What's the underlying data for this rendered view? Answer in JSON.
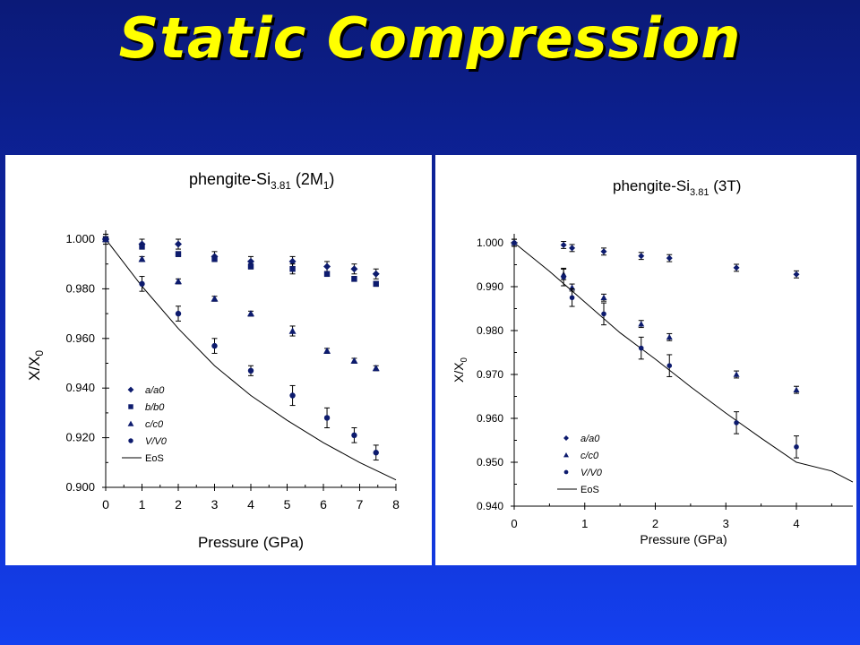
{
  "slide": {
    "title": "Static Compression"
  },
  "chart_data": [
    {
      "type": "scatter",
      "title_main": "phengite-Si",
      "title_sub": "3.81",
      "title_suffix_main": " (2M",
      "title_suffix_sub": "1",
      "title_suffix_end": ")",
      "xlabel": "Pressure (GPa)",
      "ylabel_main": "X/X",
      "ylabel_sub": "0",
      "xlim": [
        0,
        8
      ],
      "ylim": [
        0.9,
        1.0
      ],
      "xticks": [
        "0",
        "1",
        "2",
        "3",
        "4",
        "5",
        "6",
        "7",
        "8"
      ],
      "yticks": [
        "0.900",
        "0.920",
        "0.940",
        "0.960",
        "0.980",
        "1.000"
      ],
      "legend_position": "bottom-left",
      "series": [
        {
          "name": "a/a0",
          "marker": "diamond",
          "x": [
            0,
            1,
            2,
            3,
            4,
            5.15,
            6.1,
            6.85,
            7.45
          ],
          "y": [
            1.0,
            0.998,
            0.998,
            0.993,
            0.991,
            0.991,
            0.989,
            0.988,
            0.986
          ],
          "err": [
            0.002,
            0.002,
            0.002,
            0.002,
            0.002,
            0.002,
            0.002,
            0.002,
            0.002
          ]
        },
        {
          "name": "b/b0",
          "marker": "square",
          "x": [
            0,
            1,
            2,
            3,
            4,
            5.15,
            6.1,
            6.85,
            7.45
          ],
          "y": [
            1.0,
            0.997,
            0.994,
            0.992,
            0.989,
            0.988,
            0.986,
            0.984,
            0.982
          ],
          "err": [
            0.001,
            0.001,
            0.001,
            0.001,
            0.001,
            0.002,
            0.001,
            0.001,
            0.001
          ]
        },
        {
          "name": "c/c0",
          "marker": "triangle",
          "x": [
            0,
            1,
            2,
            3,
            4,
            5.15,
            6.1,
            6.85,
            7.45
          ],
          "y": [
            1.0,
            0.992,
            0.983,
            0.976,
            0.97,
            0.963,
            0.955,
            0.951,
            0.948
          ],
          "err": [
            0.001,
            0.001,
            0.001,
            0.001,
            0.001,
            0.002,
            0.001,
            0.001,
            0.001
          ]
        },
        {
          "name": "V/V0",
          "marker": "circle",
          "x": [
            0,
            1,
            2,
            3,
            4,
            5.15,
            6.1,
            6.85,
            7.45
          ],
          "y": [
            1.0,
            0.982,
            0.97,
            0.957,
            0.947,
            0.937,
            0.928,
            0.921,
            0.914
          ],
          "err": [
            0.002,
            0.003,
            0.003,
            0.003,
            0.002,
            0.004,
            0.004,
            0.003,
            0.003
          ]
        }
      ],
      "eos": {
        "name": "EoS",
        "x": [
          0,
          1,
          2,
          3,
          4,
          5,
          6,
          7,
          8
        ],
        "y": [
          1.0,
          0.981,
          0.964,
          0.949,
          0.937,
          0.927,
          0.918,
          0.91,
          0.903
        ]
      }
    },
    {
      "type": "scatter",
      "title_main": "phengite-Si",
      "title_sub": "3.81",
      "title_suffix_main": " (3T)",
      "title_suffix_sub": "",
      "title_suffix_end": "",
      "xlabel": "Pressure (GPa)",
      "ylabel_main": "X/X",
      "ylabel_sub": "0",
      "xlim": [
        0,
        4.8
      ],
      "ylim": [
        0.94,
        1.0
      ],
      "xticks": [
        "0",
        "1",
        "2",
        "3",
        "4"
      ],
      "yticks": [
        "0.940",
        "0.950",
        "0.960",
        "0.970",
        "0.980",
        "0.990",
        "1.000"
      ],
      "legend_position": "bottom-left",
      "series": [
        {
          "name": "a/a0",
          "marker": "diamond",
          "x": [
            0,
            0.7,
            0.82,
            1.27,
            1.8,
            2.2,
            3.15,
            4.0
          ],
          "y": [
            1.0,
            0.9995,
            0.9988,
            0.998,
            0.997,
            0.9965,
            0.9943,
            0.9928
          ],
          "err": [
            0.0008,
            0.0008,
            0.0008,
            0.0008,
            0.0008,
            0.0008,
            0.0008,
            0.0008
          ]
        },
        {
          "name": "c/c0",
          "marker": "triangle",
          "x": [
            0,
            0.7,
            0.82,
            1.27,
            1.8,
            2.2,
            3.15,
            4.0
          ],
          "y": [
            1.0,
            0.9928,
            0.9898,
            0.9875,
            0.9815,
            0.9785,
            0.97,
            0.9665
          ],
          "err": [
            0.0008,
            0.0012,
            0.0008,
            0.0008,
            0.0008,
            0.0008,
            0.0008,
            0.0008
          ]
        },
        {
          "name": "V/V0",
          "marker": "circle",
          "x": [
            0,
            0.7,
            0.82,
            1.27,
            1.8,
            2.2,
            3.15,
            4.0
          ],
          "y": [
            1.0,
            0.9922,
            0.9875,
            0.9838,
            0.976,
            0.972,
            0.959,
            0.9535
          ],
          "err": [
            0.0008,
            0.002,
            0.002,
            0.0025,
            0.0025,
            0.0025,
            0.0025,
            0.0025
          ]
        }
      ],
      "eos": {
        "name": "EoS",
        "x": [
          0,
          0.5,
          1,
          1.5,
          2,
          2.5,
          3,
          3.5,
          4,
          4.5,
          4.8
        ],
        "y": [
          1.0,
          0.9935,
          0.9865,
          0.9795,
          0.9735,
          0.9672,
          0.9612,
          0.9555,
          0.95,
          0.948,
          0.9455
        ]
      }
    }
  ]
}
